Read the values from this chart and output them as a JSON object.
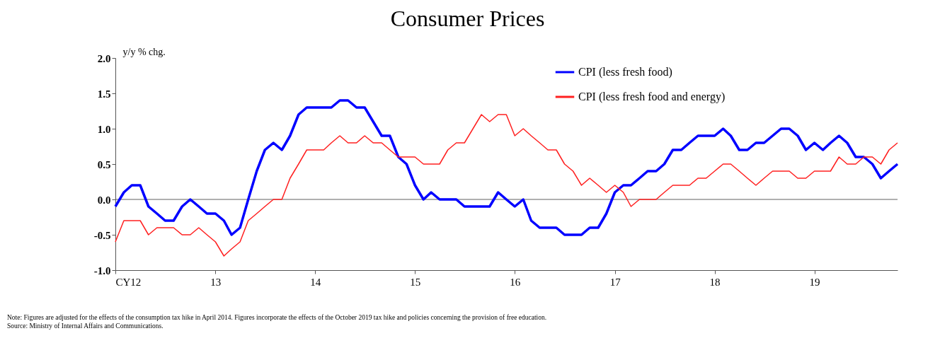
{
  "chart_data": {
    "type": "line",
    "title": "Consumer Prices",
    "ylabel": "y/y % chg.",
    "x": [
      "2012-01",
      "2012-02",
      "2012-03",
      "2012-04",
      "2012-05",
      "2012-06",
      "2012-07",
      "2012-08",
      "2012-09",
      "2012-10",
      "2012-11",
      "2012-12",
      "2013-01",
      "2013-02",
      "2013-03",
      "2013-04",
      "2013-05",
      "2013-06",
      "2013-07",
      "2013-08",
      "2013-09",
      "2013-10",
      "2013-11",
      "2013-12",
      "2014-01",
      "2014-02",
      "2014-03",
      "2014-04",
      "2014-05",
      "2014-06",
      "2014-07",
      "2014-08",
      "2014-09",
      "2014-10",
      "2014-11",
      "2014-12",
      "2015-01",
      "2015-02",
      "2015-03",
      "2015-04",
      "2015-05",
      "2015-06",
      "2015-07",
      "2015-08",
      "2015-09",
      "2015-10",
      "2015-11",
      "2015-12",
      "2016-01",
      "2016-02",
      "2016-03",
      "2016-04",
      "2016-05",
      "2016-06",
      "2016-07",
      "2016-08",
      "2016-09",
      "2016-10",
      "2016-11",
      "2016-12",
      "2017-01",
      "2017-02",
      "2017-03",
      "2017-04",
      "2017-05",
      "2017-06",
      "2017-07",
      "2017-08",
      "2017-09",
      "2017-10",
      "2017-11",
      "2017-12",
      "2018-01",
      "2018-02",
      "2018-03",
      "2018-04",
      "2018-05",
      "2018-06",
      "2018-07",
      "2018-08",
      "2018-09",
      "2018-10",
      "2018-11",
      "2018-12",
      "2019-01",
      "2019-02",
      "2019-03",
      "2019-04",
      "2019-05",
      "2019-06",
      "2019-07",
      "2019-08",
      "2019-09",
      "2019-10",
      "2019-11"
    ],
    "series": [
      {
        "name": "CPI (less fresh food)",
        "color": "#0000ff",
        "values": [
          -0.1,
          0.1,
          0.2,
          0.2,
          -0.1,
          -0.2,
          -0.3,
          -0.3,
          -0.1,
          0.0,
          -0.1,
          -0.2,
          -0.2,
          -0.3,
          -0.5,
          -0.4,
          0.0,
          0.4,
          0.7,
          0.8,
          0.7,
          0.9,
          1.2,
          1.3,
          1.3,
          1.3,
          1.3,
          1.4,
          1.4,
          1.3,
          1.3,
          1.1,
          0.9,
          0.9,
          0.6,
          0.5,
          0.2,
          0.0,
          0.1,
          0.0,
          0.0,
          0.0,
          -0.1,
          -0.1,
          -0.1,
          -0.1,
          0.1,
          0.0,
          -0.1,
          0.0,
          -0.3,
          -0.4,
          -0.4,
          -0.4,
          -0.5,
          -0.5,
          -0.5,
          -0.4,
          -0.4,
          -0.2,
          0.1,
          0.2,
          0.2,
          0.3,
          0.4,
          0.4,
          0.5,
          0.7,
          0.7,
          0.8,
          0.9,
          0.9,
          0.9,
          1.0,
          0.9,
          0.7,
          0.7,
          0.8,
          0.8,
          0.9,
          1.0,
          1.0,
          0.9,
          0.7,
          0.8,
          0.7,
          0.8,
          0.9,
          0.8,
          0.6,
          0.6,
          0.5,
          0.3,
          0.4,
          0.5
        ]
      },
      {
        "name": "CPI (less fresh food and energy)",
        "color": "#ff2020",
        "values": [
          -0.6,
          -0.3,
          -0.3,
          -0.3,
          -0.5,
          -0.4,
          -0.4,
          -0.4,
          -0.5,
          -0.5,
          -0.4,
          -0.5,
          -0.6,
          -0.8,
          -0.7,
          -0.6,
          -0.3,
          -0.2,
          -0.1,
          0.0,
          0.0,
          0.3,
          0.5,
          0.7,
          0.7,
          0.7,
          0.8,
          0.9,
          0.8,
          0.8,
          0.9,
          0.8,
          0.8,
          0.7,
          0.6,
          0.6,
          0.6,
          0.5,
          0.5,
          0.5,
          0.7,
          0.8,
          0.8,
          1.0,
          1.2,
          1.1,
          1.2,
          1.2,
          0.9,
          1.0,
          0.9,
          0.8,
          0.7,
          0.7,
          0.5,
          0.4,
          0.2,
          0.3,
          0.2,
          0.1,
          0.2,
          0.1,
          -0.1,
          0.0,
          0.0,
          0.0,
          0.1,
          0.2,
          0.2,
          0.2,
          0.3,
          0.3,
          0.4,
          0.5,
          0.5,
          0.4,
          0.3,
          0.2,
          0.3,
          0.4,
          0.4,
          0.4,
          0.3,
          0.3,
          0.4,
          0.4,
          0.4,
          0.6,
          0.5,
          0.5,
          0.6,
          0.6,
          0.5,
          0.7,
          0.8
        ]
      }
    ],
    "xlim": [
      "2012-01",
      "2019-11"
    ],
    "xticks": [
      {
        "value": "2012-01",
        "label": "CY12"
      },
      {
        "value": "2013-01",
        "label": "13"
      },
      {
        "value": "2014-01",
        "label": "14"
      },
      {
        "value": "2015-01",
        "label": "15"
      },
      {
        "value": "2016-01",
        "label": "16"
      },
      {
        "value": "2017-01",
        "label": "17"
      },
      {
        "value": "2018-01",
        "label": "18"
      },
      {
        "value": "2019-01",
        "label": "19"
      }
    ],
    "ylim": [
      -1.0,
      2.0
    ],
    "yticks": [
      {
        "value": -1.0,
        "label": "-1.0"
      },
      {
        "value": -0.5,
        "label": "-0.5"
      },
      {
        "value": 0.0,
        "label": "0.0"
      },
      {
        "value": 0.5,
        "label": "0.5"
      },
      {
        "value": 1.0,
        "label": "1.0"
      },
      {
        "value": 1.5,
        "label": "1.5"
      },
      {
        "value": 2.0,
        "label": "2.0"
      }
    ],
    "ref_lines": [
      {
        "axis": "y",
        "value": 0,
        "color": "#606060"
      }
    ],
    "grid": false,
    "legend": "top right",
    "annotations": [
      "Note: Figures are adjusted for the effects of the consumption tax hike in April 2014. Figures incorporate the effects of the October 2019 tax hike and policies concerning the provision of free education.",
      "Source: Ministry of Internal Affairs and Communications."
    ]
  }
}
